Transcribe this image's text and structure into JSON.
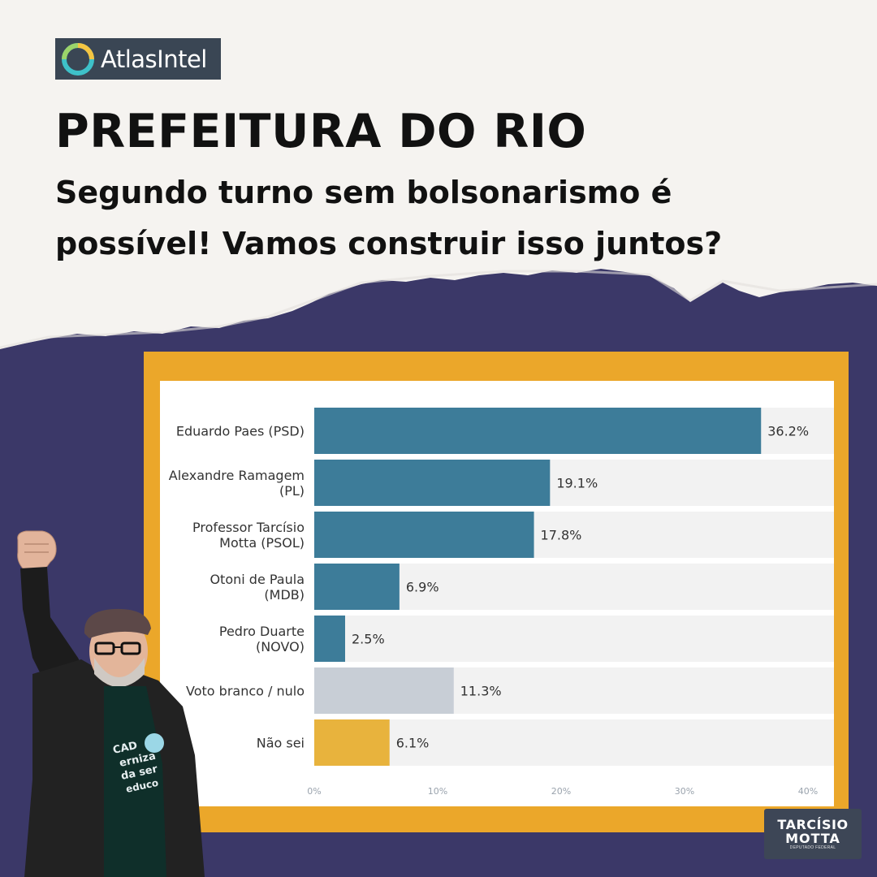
{
  "brand": {
    "logo_text": "AtlasIntel"
  },
  "headline": "PREFEITURA DO RIO",
  "subtitle": "Segundo turno sem bolsonarismo é possível! Vamos construir isso juntos?",
  "colors": {
    "background_top": "#f5f3f0",
    "background_bottom": "#3b3868",
    "frame": "#eba72a",
    "bar_candidate": "#3d7c99",
    "bar_blank": "#c8ced6",
    "bar_unknown": "#e8b33d",
    "track": "#f2f2f2"
  },
  "badge": {
    "name": "TARCÍSIO",
    "surname": "MOTTA",
    "role": "DEPUTADO FEDERAL"
  },
  "chart_data": {
    "type": "bar",
    "orientation": "horizontal",
    "categories": [
      [
        "Eduardo Paes (PSD)"
      ],
      [
        "Alexandre Ramagem",
        "(PL)"
      ],
      [
        "Professor Tarcísio",
        "Motta (PSOL)"
      ],
      [
        "Otoni de Paula",
        "(MDB)"
      ],
      [
        "Pedro Duarte",
        "(NOVO)"
      ],
      [
        "Voto branco / nulo"
      ],
      [
        "Não sei"
      ]
    ],
    "values": [
      36.2,
      19.1,
      17.8,
      6.9,
      2.5,
      11.3,
      6.1
    ],
    "value_labels": [
      "36.2%",
      "19.1%",
      "17.8%",
      "6.9%",
      "2.5%",
      "11.3%",
      "6.1%"
    ],
    "bar_colors": [
      "#3d7c99",
      "#3d7c99",
      "#3d7c99",
      "#3d7c99",
      "#3d7c99",
      "#c8ced6",
      "#e8b33d"
    ],
    "x_ticks": [
      "0%",
      "10%",
      "20%",
      "30%",
      "40%"
    ],
    "x_tick_values": [
      0,
      10,
      20,
      30,
      40
    ],
    "xlim": [
      0,
      40
    ],
    "grid": false,
    "legend": "none"
  }
}
